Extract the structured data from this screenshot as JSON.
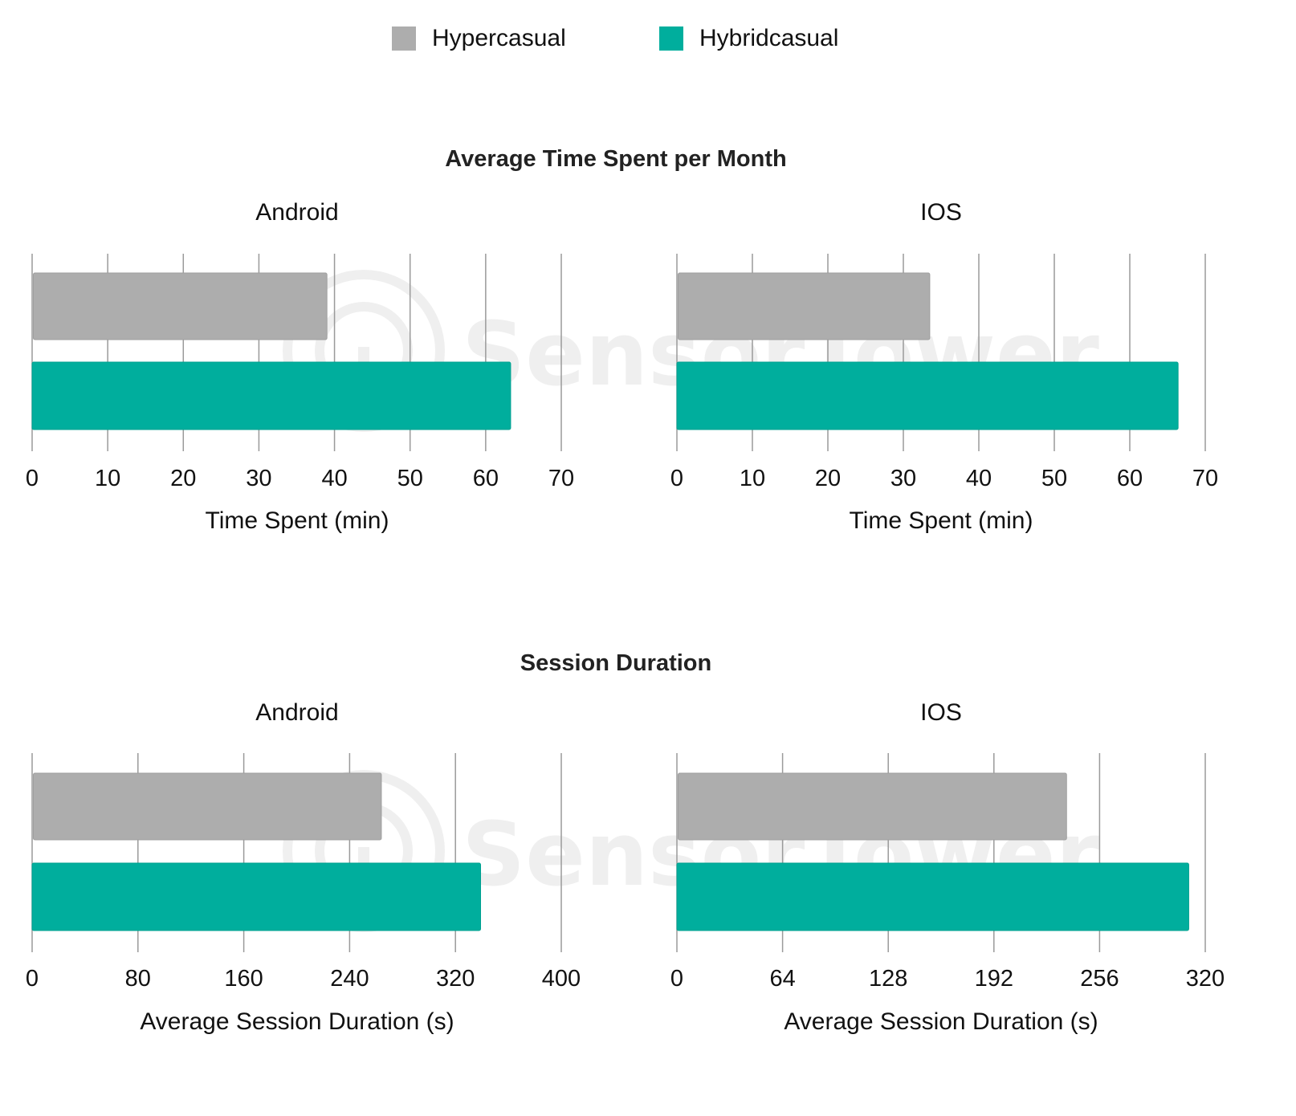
{
  "legend": {
    "items": [
      {
        "label": "Hypercasual",
        "color": "#ADADAD"
      },
      {
        "label": "Hybridcasual",
        "color": "#00AE9D"
      }
    ]
  },
  "sections": [
    {
      "title": "Average Time Spent per Month"
    },
    {
      "title": "Session Duration"
    }
  ],
  "watermark": "SensorTower",
  "chart_data": [
    {
      "type": "bar",
      "orientation": "horizontal",
      "title": "Android",
      "section": "Average Time Spent per Month",
      "xlabel": "Time Spent (min)",
      "xlim": [
        0,
        70
      ],
      "ticks": [
        0,
        10,
        20,
        30,
        40,
        50,
        60,
        70
      ],
      "grid": true,
      "series": [
        {
          "name": "Hypercasual",
          "values": [
            39
          ]
        },
        {
          "name": "Hybridcasual",
          "values": [
            63.3
          ]
        }
      ]
    },
    {
      "type": "bar",
      "orientation": "horizontal",
      "title": "IOS",
      "section": "Average Time Spent per Month",
      "xlabel": "Time Spent (min)",
      "xlim": [
        0,
        70
      ],
      "ticks": [
        0,
        10,
        20,
        30,
        40,
        50,
        60,
        70
      ],
      "grid": true,
      "series": [
        {
          "name": "Hypercasual",
          "values": [
            33.5
          ]
        },
        {
          "name": "Hybridcasual",
          "values": [
            66.4
          ]
        }
      ]
    },
    {
      "type": "bar",
      "orientation": "horizontal",
      "title": "Android",
      "section": "Session Duration",
      "xlabel": "Average Session Duration (s)",
      "xlim": [
        0,
        400
      ],
      "ticks": [
        0,
        80,
        160,
        240,
        320,
        400
      ],
      "grid": true,
      "series": [
        {
          "name": "Hypercasual",
          "values": [
            264
          ]
        },
        {
          "name": "Hybridcasual",
          "values": [
            339
          ]
        }
      ]
    },
    {
      "type": "bar",
      "orientation": "horizontal",
      "title": "IOS",
      "section": "Session Duration",
      "xlabel": "Average Session Duration (s)",
      "xlim": [
        0,
        320
      ],
      "ticks": [
        0,
        64,
        128,
        192,
        256,
        320
      ],
      "grid": true,
      "series": [
        {
          "name": "Hypercasual",
          "values": [
            236
          ]
        },
        {
          "name": "Hybridcasual",
          "values": [
            310
          ]
        }
      ]
    }
  ]
}
